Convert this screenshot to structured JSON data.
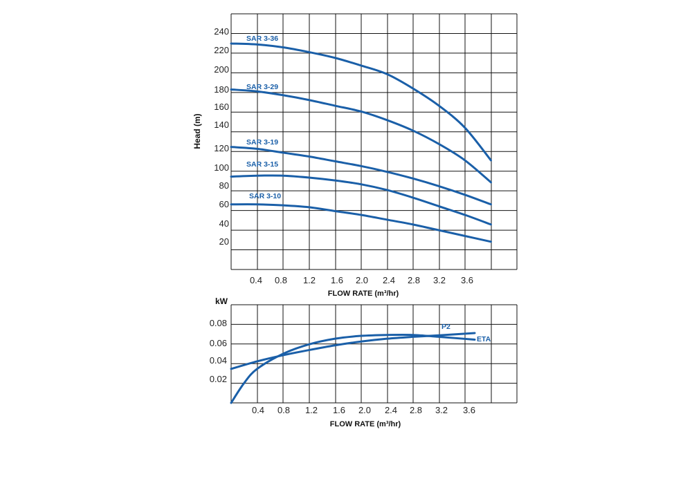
{
  "color": "#1a5fa8",
  "chart_data": [
    {
      "type": "line",
      "title": "",
      "xlabel": "FLOW RATE (m³/hr)",
      "ylabel": "Head (m)",
      "xlim": [
        0,
        4.4
      ],
      "ylim": [
        -9,
        258
      ],
      "xticks": [
        "0.4",
        "0.8",
        "1.2",
        "1.6",
        "2.0",
        "2.4",
        "2.8",
        "3.2",
        "3.6"
      ],
      "yticks": [
        "240",
        "220",
        "200",
        "180",
        "160",
        "140",
        "120",
        "100",
        "80",
        "60",
        "40",
        "20"
      ],
      "grid": true,
      "series": [
        {
          "name": "SAR 3-36",
          "x": [
            0,
            0.4,
            0.8,
            1.2,
            1.6,
            2.0,
            2.4,
            2.8,
            3.2,
            3.6,
            4.0
          ],
          "y": [
            227,
            226,
            223,
            218,
            212,
            204,
            195,
            180,
            162,
            139,
            105
          ]
        },
        {
          "name": "SAR 3-29",
          "x": [
            0,
            0.4,
            0.8,
            1.2,
            1.6,
            2.0,
            2.4,
            2.8,
            3.2,
            3.6,
            4.0
          ],
          "y": [
            179,
            177,
            173,
            168,
            162,
            156,
            147,
            136,
            122,
            105,
            82
          ]
        },
        {
          "name": "SAR 3-19",
          "x": [
            0,
            0.4,
            0.8,
            1.2,
            1.6,
            2.0,
            2.4,
            2.8,
            3.2,
            3.6,
            4.0
          ],
          "y": [
            119,
            117,
            113,
            109,
            104,
            99,
            93,
            86,
            78,
            69,
            59
          ]
        },
        {
          "name": "SAR 3-15",
          "x": [
            0,
            0.4,
            0.8,
            1.2,
            1.6,
            2.0,
            2.4,
            2.8,
            3.2,
            3.6,
            4.0
          ],
          "y": [
            88,
            89,
            89,
            87,
            84,
            80,
            74,
            66,
            57,
            48,
            38
          ]
        },
        {
          "name": "SAR 3-10",
          "x": [
            0,
            0.4,
            0.8,
            1.2,
            1.6,
            2.0,
            2.4,
            2.8,
            3.2,
            3.6,
            4.0
          ],
          "y": [
            59,
            59,
            58,
            56,
            52,
            48,
            43,
            38,
            32,
            26,
            20
          ]
        }
      ]
    },
    {
      "type": "line",
      "title": "",
      "xlabel": "FLOW RATE (m³/hr)",
      "ylabel": "kW",
      "xlim": [
        0,
        4.4
      ],
      "ylim": [
        -0.004,
        0.1
      ],
      "xticks": [
        "0.4",
        "0.8",
        "1.2",
        "1.6",
        "2.0",
        "2.4",
        "2.8",
        "3.2",
        "3.6"
      ],
      "yticks": [
        "0.08",
        "0.06",
        "0.04",
        "0.02"
      ],
      "grid": true,
      "series": [
        {
          "name": "P2",
          "x": [
            0,
            0.4,
            0.8,
            1.2,
            1.6,
            2.0,
            2.4,
            2.8,
            3.2,
            3.75
          ],
          "y": [
            0.032,
            0.04,
            0.0465,
            0.052,
            0.057,
            0.061,
            0.064,
            0.066,
            0.0676,
            0.07
          ]
        },
        {
          "name": "ETA",
          "x": [
            0,
            0.2,
            0.4,
            0.8,
            1.2,
            1.6,
            2.0,
            2.4,
            2.8,
            3.2,
            3.75
          ],
          "y": [
            -0.004,
            0.017,
            0.032,
            0.048,
            0.058,
            0.064,
            0.067,
            0.068,
            0.068,
            0.066,
            0.063
          ]
        }
      ]
    }
  ]
}
